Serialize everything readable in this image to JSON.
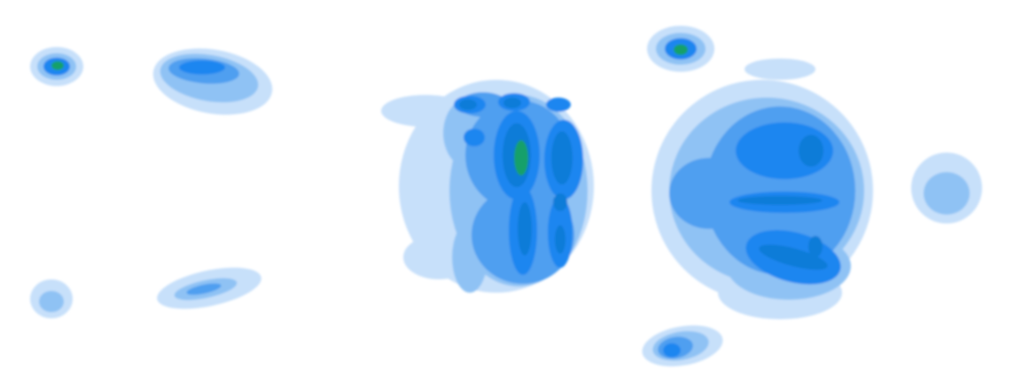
{
  "chart_data": {
    "type": "heatmap",
    "style": "filled-contour",
    "title": "",
    "xlabel": "",
    "ylabel": "",
    "legend": "none",
    "grid": false,
    "color_scale": [
      "#ececec",
      "#c7e0fa",
      "#8fc2f4",
      "#4f9ff0",
      "#1f86f0",
      "#0f7bd8",
      "#14a06a"
    ],
    "regions": [
      {
        "id": "upper-left-spot",
        "peak_level": 6,
        "levels": [
          1,
          2,
          4,
          6
        ]
      },
      {
        "id": "upper-left-patch",
        "peak_level": 4,
        "levels": [
          1,
          2,
          3,
          4
        ]
      },
      {
        "id": "lower-left-spot",
        "peak_level": 2,
        "levels": [
          1,
          2
        ]
      },
      {
        "id": "lower-left-streak",
        "peak_level": 3,
        "levels": [
          1,
          2,
          3
        ]
      },
      {
        "id": "central-block",
        "peak_level": 6,
        "levels": [
          1,
          2,
          3,
          4,
          5,
          6
        ]
      },
      {
        "id": "upper-right-spot",
        "peak_level": 6,
        "levels": [
          1,
          2,
          4,
          6
        ]
      },
      {
        "id": "right-block",
        "peak_level": 5,
        "levels": [
          1,
          2,
          3,
          4,
          5
        ]
      },
      {
        "id": "far-right-spot",
        "peak_level": 2,
        "levels": [
          1,
          2
        ]
      },
      {
        "id": "lower-right-streak",
        "peak_level": 4,
        "levels": [
          1,
          2,
          3,
          4
        ]
      }
    ]
  }
}
